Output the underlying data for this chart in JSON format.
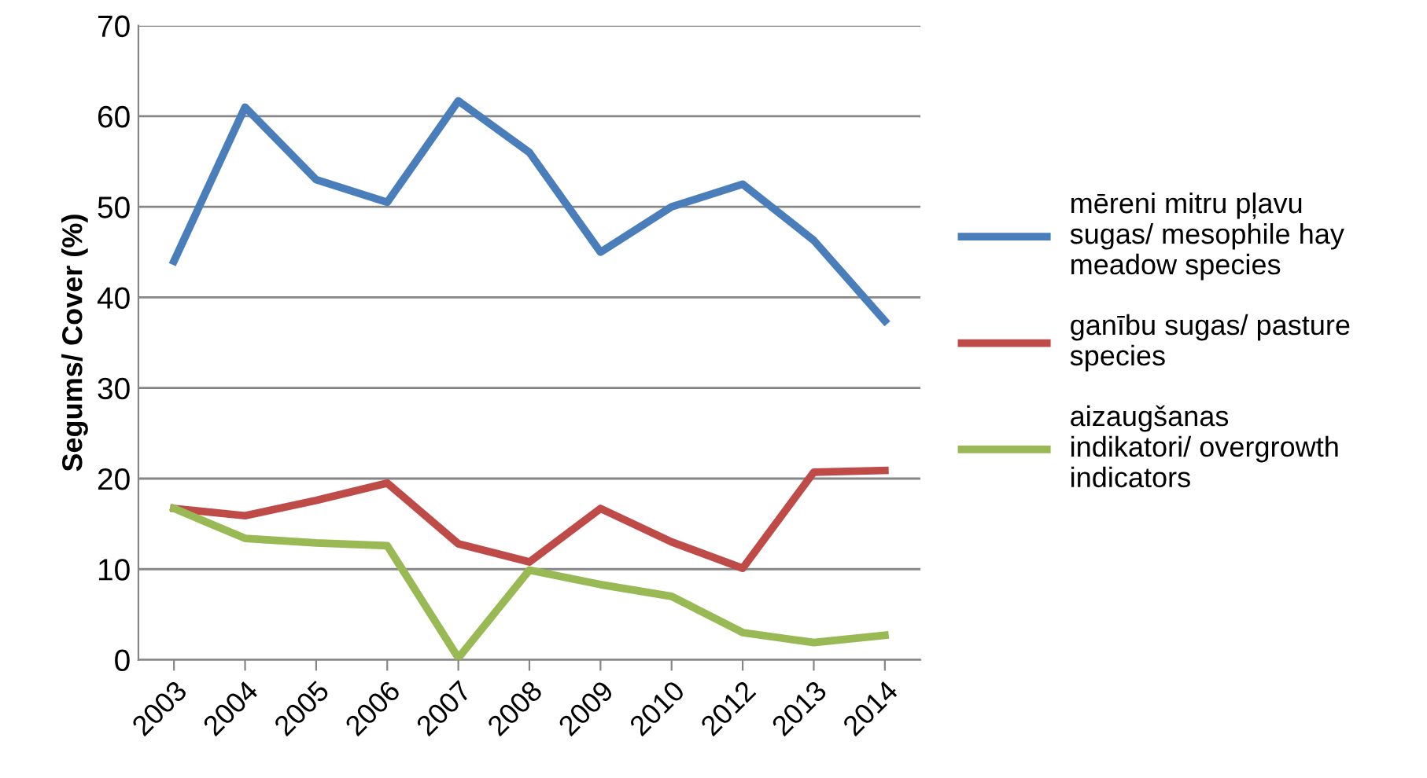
{
  "chart_data": {
    "type": "line",
    "ylabel": "Segums/ Cover (%)",
    "categories": [
      "2003",
      "2004",
      "2005",
      "2006",
      "2007",
      "2008",
      "2009",
      "2010",
      "2012",
      "2013",
      "2014"
    ],
    "series": [
      {
        "name": "mēreni mitru pļavu sugas/ mesophile hay meadow species",
        "color": "#4a7ebb",
        "values": [
          44,
          61,
          53,
          50.5,
          61.7,
          56,
          45,
          50,
          52.5,
          46.3,
          37.4
        ]
      },
      {
        "name": "ganību sugas/ pasture species",
        "color": "#be4b48",
        "values": [
          16.7,
          15.9,
          17.6,
          19.5,
          12.8,
          10.8,
          16.7,
          13,
          10.1,
          20.7,
          20.9
        ]
      },
      {
        "name": "aizaugšanas indikatori/ overgrowth indicators",
        "color": "#98b954",
        "values": [
          16.7,
          13.4,
          12.9,
          12.6,
          0.2,
          9.9,
          8.3,
          7,
          3,
          1.9,
          2.7
        ]
      }
    ],
    "ylim": [
      0,
      70
    ],
    "yticks": [
      0,
      10,
      20,
      30,
      40,
      50,
      60,
      70
    ],
    "grid": "y",
    "legend": "right",
    "marker": "none",
    "line_style": "solid"
  }
}
